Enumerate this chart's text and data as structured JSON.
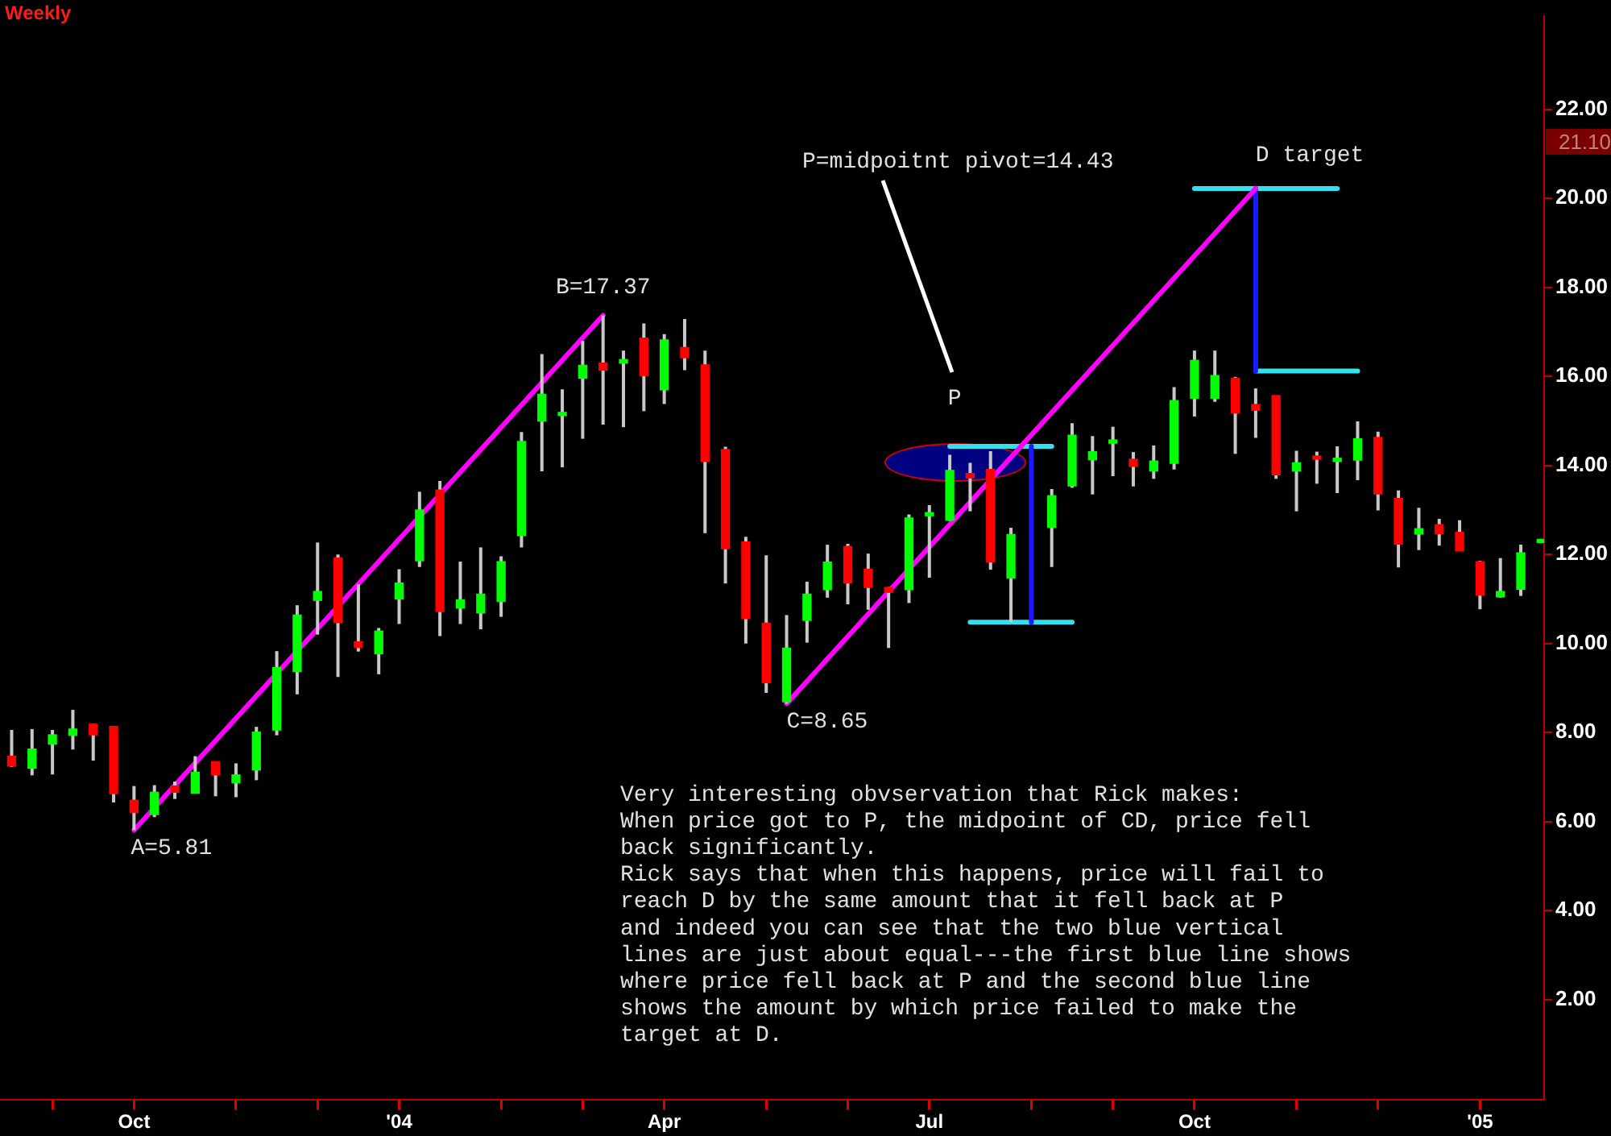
{
  "chart_data": {
    "type": "candlestick",
    "title": "Weekly",
    "x": [
      "2003-08-22",
      "2003-08-29",
      "2003-09-05",
      "2003-09-12",
      "2003-09-19",
      "2003-09-26",
      "2003-10-03",
      "2003-10-10",
      "2003-10-17",
      "2003-10-24",
      "2003-10-31",
      "2003-11-07",
      "2003-11-14",
      "2003-11-21",
      "2003-11-28",
      "2003-12-05",
      "2003-12-12",
      "2003-12-19",
      "2003-12-26",
      "2004-01-02",
      "2004-01-09",
      "2004-01-16",
      "2004-01-23",
      "2004-01-30",
      "2004-02-06",
      "2004-02-13",
      "2004-02-20",
      "2004-02-27",
      "2004-03-05",
      "2004-03-12",
      "2004-03-19",
      "2004-03-26",
      "2004-04-02",
      "2004-04-09",
      "2004-04-16",
      "2004-04-23",
      "2004-04-30",
      "2004-05-07",
      "2004-05-14",
      "2004-05-21",
      "2004-05-28",
      "2004-06-04",
      "2004-06-11",
      "2004-06-18",
      "2004-06-25",
      "2004-07-02",
      "2004-07-09",
      "2004-07-16",
      "2004-07-23",
      "2004-07-30",
      "2004-08-13",
      "2004-08-20",
      "2004-08-27",
      "2004-09-03",
      "2004-09-10",
      "2004-09-17",
      "2004-09-24",
      "2004-10-01",
      "2004-10-08",
      "2004-10-15",
      "2004-10-22",
      "2004-10-29",
      "2004-11-05",
      "2004-11-12",
      "2004-11-19",
      "2004-11-26",
      "2004-12-03",
      "2004-12-10",
      "2004-12-17",
      "2004-12-24",
      "2004-12-31",
      "2005-01-07",
      "2005-01-14",
      "2005-01-21",
      "2005-01-28"
    ],
    "ohlc": [
      [
        7.47,
        8.06,
        7.23,
        7.25
      ],
      [
        7.2,
        8.08,
        7.04,
        7.63
      ],
      [
        7.74,
        8.06,
        7.06,
        7.95
      ],
      [
        7.94,
        8.51,
        7.62,
        8.08
      ],
      [
        8.19,
        8.2,
        7.37,
        7.95
      ],
      [
        8.14,
        8.14,
        6.43,
        6.63
      ],
      [
        6.48,
        6.8,
        5.81,
        6.21
      ],
      [
        6.16,
        6.82,
        6.1,
        6.66
      ],
      [
        6.8,
        6.9,
        6.51,
        6.66
      ],
      [
        6.64,
        7.47,
        6.63,
        7.11
      ],
      [
        7.35,
        7.35,
        6.57,
        7.05
      ],
      [
        6.87,
        7.31,
        6.55,
        7.05
      ],
      [
        7.16,
        8.13,
        6.93,
        8.01
      ],
      [
        8.06,
        9.83,
        7.94,
        9.46
      ],
      [
        9.37,
        10.86,
        8.86,
        10.64
      ],
      [
        10.97,
        12.27,
        10.2,
        11.17
      ],
      [
        11.92,
        12.0,
        9.25,
        10.47
      ],
      [
        10.04,
        11.33,
        9.82,
        9.91
      ],
      [
        9.77,
        10.35,
        9.31,
        10.28
      ],
      [
        11.0,
        11.67,
        10.44,
        11.36
      ],
      [
        11.86,
        13.41,
        11.72,
        13.0
      ],
      [
        13.45,
        13.65,
        10.17,
        10.72
      ],
      [
        10.8,
        11.84,
        10.44,
        10.98
      ],
      [
        10.69,
        12.16,
        10.32,
        11.11
      ],
      [
        10.95,
        11.96,
        10.6,
        11.84
      ],
      [
        12.43,
        14.75,
        12.16,
        14.54
      ],
      [
        15.0,
        16.5,
        13.87,
        15.6
      ],
      [
        15.12,
        15.71,
        13.96,
        15.16
      ],
      [
        15.96,
        16.8,
        14.6,
        16.25
      ],
      [
        16.3,
        17.37,
        14.92,
        16.14
      ],
      [
        16.3,
        16.58,
        14.86,
        16.38
      ],
      [
        16.86,
        17.19,
        15.22,
        16.02
      ],
      [
        15.7,
        16.95,
        15.38,
        16.82
      ],
      [
        16.65,
        17.29,
        16.14,
        16.42
      ],
      [
        16.26,
        16.58,
        12.48,
        14.09
      ],
      [
        14.36,
        14.42,
        11.35,
        12.13
      ],
      [
        12.28,
        12.4,
        10.0,
        10.56
      ],
      [
        10.46,
        11.98,
        8.89,
        9.12
      ],
      [
        8.69,
        10.64,
        8.65,
        9.9
      ],
      [
        10.52,
        11.39,
        10.02,
        11.11
      ],
      [
        11.21,
        12.22,
        11.03,
        11.83
      ],
      [
        12.18,
        12.24,
        10.88,
        11.36
      ],
      [
        11.67,
        12.02,
        10.76,
        11.26
      ],
      [
        11.26,
        11.27,
        9.9,
        11.15
      ],
      [
        11.21,
        12.9,
        10.91,
        12.82
      ],
      [
        12.87,
        13.11,
        11.48,
        12.91
      ],
      [
        12.77,
        14.24,
        12.75,
        13.89
      ],
      [
        13.82,
        14.06,
        12.97,
        13.72
      ],
      [
        13.91,
        14.32,
        11.66,
        11.83
      ],
      [
        11.47,
        12.6,
        10.48,
        12.45
      ],
      [
        12.61,
        13.47,
        11.72,
        13.32
      ],
      [
        13.54,
        14.95,
        13.5,
        14.68
      ],
      [
        14.13,
        14.66,
        13.35,
        14.31
      ],
      [
        14.5,
        14.87,
        13.76,
        14.57
      ],
      [
        14.14,
        14.3,
        13.53,
        13.98
      ],
      [
        13.88,
        14.45,
        13.7,
        14.1
      ],
      [
        14.05,
        15.76,
        13.91,
        15.46
      ],
      [
        15.51,
        16.58,
        15.1,
        16.36
      ],
      [
        15.51,
        16.58,
        15.43,
        16.02
      ],
      [
        15.96,
        15.99,
        14.26,
        15.18
      ],
      [
        15.37,
        15.73,
        14.62,
        15.24
      ],
      [
        15.57,
        15.57,
        13.7,
        13.79
      ],
      [
        13.88,
        14.33,
        12.97,
        14.06
      ],
      [
        14.17,
        14.31,
        13.59,
        14.14
      ],
      [
        14.09,
        14.43,
        13.38,
        14.12
      ],
      [
        14.12,
        14.99,
        13.67,
        14.6
      ],
      [
        14.63,
        14.76,
        12.99,
        13.36
      ],
      [
        13.26,
        13.44,
        11.71,
        12.23
      ],
      [
        12.46,
        13.05,
        12.1,
        12.58
      ],
      [
        12.67,
        12.8,
        12.2,
        12.47
      ],
      [
        12.5,
        12.77,
        12.08,
        12.08
      ],
      [
        11.84,
        11.86,
        10.77,
        11.09
      ],
      [
        11.05,
        11.92,
        11.03,
        11.17
      ],
      [
        11.22,
        12.22,
        11.07,
        12.04
      ],
      [
        12.34,
        12.34,
        12.34,
        12.34
      ]
    ],
    "colors": [
      "#ff0000",
      "#00ff00",
      "#00ff00",
      "#00ff00",
      "#ff0000",
      "#ff0000",
      "#ff0000",
      "#00ff00",
      "#ff0000",
      "#00ff00",
      "#ff0000",
      "#00ff00",
      "#00ff00",
      "#00ff00",
      "#00ff00",
      "#00ff00",
      "#ff0000",
      "#ff0000",
      "#00ff00",
      "#00ff00",
      "#00ff00",
      "#ff0000",
      "#00ff00",
      "#00ff00",
      "#00ff00",
      "#00ff00",
      "#00ff00",
      "#00ff00",
      "#00ff00",
      "#ff0000",
      "#00ff00",
      "#ff0000",
      "#00ff00",
      "#ff0000",
      "#ff0000",
      "#ff0000",
      "#ff0000",
      "#ff0000",
      "#00ff00",
      "#00ff00",
      "#00ff00",
      "#ff0000",
      "#ff0000",
      "#ff0000",
      "#00ff00",
      "#00ff00",
      "#00ff00",
      "#ff0000",
      "#ff0000",
      "#00ff00",
      "#00ff00",
      "#00ff00",
      "#00ff00",
      "#00ff00",
      "#ff0000",
      "#00ff00",
      "#00ff00",
      "#00ff00",
      "#00ff00",
      "#ff0000",
      "#ff0000",
      "#ff0000",
      "#00ff00",
      "#ff0000",
      "#00ff00",
      "#00ff00",
      "#ff0000",
      "#ff0000",
      "#00ff00",
      "#ff0000",
      "#ff0000",
      "#ff0000",
      "#00ff00",
      "#00ff00",
      "#00ff00"
    ],
    "series": [
      {
        "type": "line",
        "color": "#ff00ff",
        "x": [
          "2003-10-03",
          "2004-03-12"
        ],
        "values": [
          5.81,
          17.37
        ]
      },
      {
        "type": "line",
        "color": "#ff00ff",
        "x": [
          "2004-05-14",
          "2004-10-22"
        ],
        "values": [
          8.65,
          20.22
        ]
      },
      {
        "type": "line",
        "color": "#1a1aff",
        "x": [
          "2004-08-06",
          "2004-08-06"
        ],
        "values": [
          14.43,
          10.48
        ]
      },
      {
        "type": "line",
        "color": "#1a1aff",
        "x": [
          "2004-10-22",
          "2004-10-22"
        ],
        "values": [
          20.22,
          16.12
        ]
      },
      {
        "type": "line",
        "color": "#33e0f0",
        "x": [
          "2004-07-09",
          "2004-08-13"
        ],
        "values": [
          14.43,
          14.43
        ]
      },
      {
        "type": "line",
        "color": "#33e0f0",
        "x": [
          "2004-07-16",
          "2004-08-20"
        ],
        "values": [
          10.48,
          10.48
        ]
      },
      {
        "type": "line",
        "color": "#33e0f0",
        "x": [
          "2004-10-01",
          "2004-11-19"
        ],
        "values": [
          20.22,
          20.22
        ]
      },
      {
        "type": "line",
        "color": "#33e0f0",
        "x": [
          "2004-10-22",
          "2004-11-26"
        ],
        "values": [
          16.12,
          16.12
        ]
      }
    ],
    "xlim": [
      "2003-08-18",
      "2005-01-29"
    ],
    "xticks": [
      {
        "value": "2003-09-05",
        "label": null
      },
      {
        "value": "2003-10-03",
        "label": "Oct"
      },
      {
        "value": "2003-11-07",
        "label": null
      },
      {
        "value": "2003-12-05",
        "label": null
      },
      {
        "value": "2004-01-02",
        "label": "'04"
      },
      {
        "value": "2004-02-06",
        "label": null
      },
      {
        "value": "2004-03-05",
        "label": null
      },
      {
        "value": "2004-04-02",
        "label": "Apr"
      },
      {
        "value": "2004-05-07",
        "label": null
      },
      {
        "value": "2004-06-04",
        "label": null
      },
      {
        "value": "2004-07-02",
        "label": "Jul"
      },
      {
        "value": "2004-08-06",
        "label": null
      },
      {
        "value": "2004-09-03",
        "label": null
      },
      {
        "value": "2004-10-01",
        "label": "Oct"
      },
      {
        "value": "2004-11-05",
        "label": null
      },
      {
        "value": "2004-12-03",
        "label": null
      },
      {
        "value": "2005-01-07",
        "label": "'05"
      }
    ],
    "ylim": [
      -0.25,
      24.1
    ],
    "yticks": [
      {
        "value": 2,
        "label": "2.00"
      },
      {
        "value": 4,
        "label": "4.00"
      },
      {
        "value": 6,
        "label": "6.00"
      },
      {
        "value": 8,
        "label": "8.00"
      },
      {
        "value": 10,
        "label": "10.00"
      },
      {
        "value": 12,
        "label": "12.00"
      },
      {
        "value": 14,
        "label": "14.00"
      },
      {
        "value": 16,
        "label": "16.00"
      },
      {
        "value": 18,
        "label": "18.00"
      },
      {
        "value": 20,
        "label": "20.00"
      },
      {
        "value": 22,
        "label": "22.00"
      }
    ],
    "annotations": [
      {
        "text": "A=5.81",
        "x": "2003-10-03",
        "y": 5.81
      },
      {
        "text": "B=17.37",
        "x": "2004-03-12",
        "y": 17.37
      },
      {
        "text": "C=8.65",
        "x": "2004-05-14",
        "y": 8.65
      },
      {
        "text": "P",
        "x": "2004-07-09",
        "y": 14.43
      },
      {
        "text": "D target",
        "x": "2004-10-22",
        "y": 20.22
      },
      "P=midpoitnt pivot=14.43",
      "Very interesting obvservation that Rick makes:\nWhen price got to P, the midpoint of CD, price fell\nback significantly.\nRick says that when this happens, price will fail to\nreach D by the same amount that it fell back at P\nand indeed you can see that the two blue vertical\nlines are just about equal---the first blue line shows\nwhere price fell back at P and the second blue line\nshows the amount by which price failed to make the\ntarget at D.",
      "21.10"
    ]
  }
}
